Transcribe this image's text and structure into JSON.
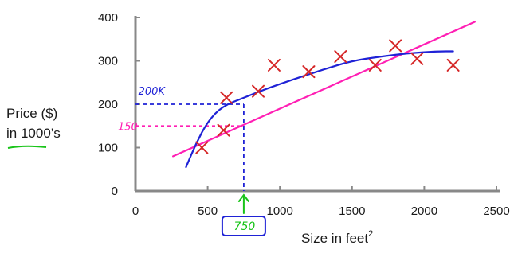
{
  "chart_data": {
    "type": "scatter",
    "title": "",
    "ylabel_line1": "Price ($)",
    "ylabel_line2": "in 1000’s",
    "xlabel": "Size in feet",
    "xlabel_sup": "2",
    "xlim": [
      0,
      2500
    ],
    "ylim": [
      0,
      400
    ],
    "xticks": [
      0,
      500,
      1000,
      1500,
      2000,
      2500
    ],
    "yticks": [
      0,
      100,
      200,
      300,
      400
    ],
    "grid": false,
    "series": [
      {
        "marker": "x",
        "color": "#d62728",
        "x": [
          460,
          610,
          630,
          850,
          960,
          1200,
          1420,
          1660,
          1800,
          1950,
          2200
        ],
        "y": [
          100,
          140,
          215,
          230,
          290,
          275,
          310,
          290,
          335,
          305,
          290
        ]
      }
    ],
    "fits": [
      {
        "kind": "linear",
        "color": "#ff1fb4",
        "x": [
          260,
          2350
        ],
        "y": [
          80,
          390
        ]
      },
      {
        "kind": "curve",
        "color": "#1f22d6",
        "x": [
          350,
          420,
          500,
          600,
          750,
          900,
          1100,
          1300,
          1500,
          1700,
          1900,
          2100,
          2200
        ],
        "y": [
          55,
          110,
          160,
          195,
          215,
          235,
          258,
          280,
          300,
          310,
          318,
          322,
          322
        ]
      }
    ],
    "annotations": {
      "blue_label": "200K",
      "magenta_label": "150",
      "green_label": "750",
      "blue_guide_y": 200,
      "magenta_guide_y": 150,
      "query_x": 750
    },
    "colors": {
      "blue": "#1f22d6",
      "magenta": "#ff1fb4",
      "green": "#19c419",
      "marker": "#d62728",
      "axis": "#888888"
    }
  }
}
